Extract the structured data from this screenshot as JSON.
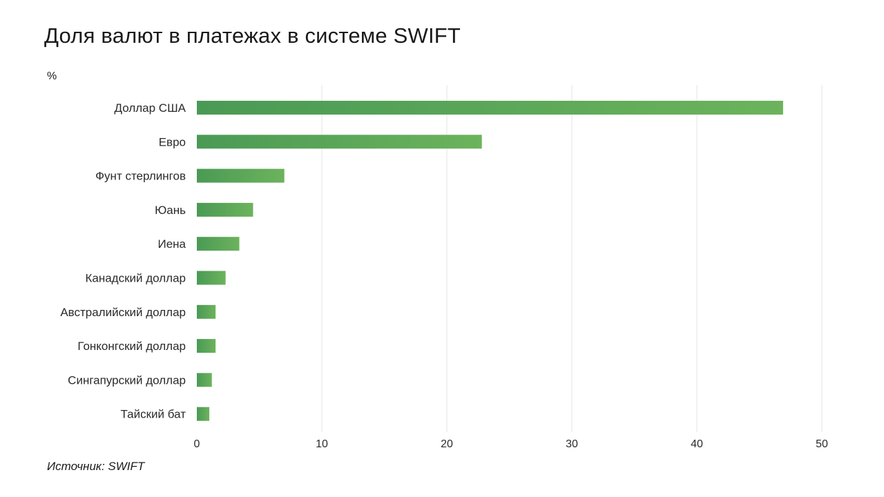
{
  "title": "Доля валют в платежах в системе SWIFT",
  "unit_label": "%",
  "source": "Источник: SWIFT",
  "colors": {
    "bar_start": "#4a9a55",
    "bar_end": "#6cb35c",
    "grid": "#e3e3e3"
  },
  "chart_data": {
    "type": "bar",
    "orientation": "horizontal",
    "categories": [
      "Доллар США",
      "Евро",
      "Фунт стерлингов",
      "Юань",
      "Иена",
      "Канадский доллар",
      "Австралийский доллар",
      "Гонконгский доллар",
      "Сингапурский доллар",
      "Тайский бат"
    ],
    "values": [
      46.9,
      22.8,
      7.0,
      4.5,
      3.4,
      2.3,
      1.5,
      1.5,
      1.2,
      1.0
    ],
    "xlim": [
      0,
      50
    ],
    "xticks": [
      0,
      10,
      20,
      30,
      40,
      50
    ],
    "ylabel": "%",
    "grid": true
  }
}
